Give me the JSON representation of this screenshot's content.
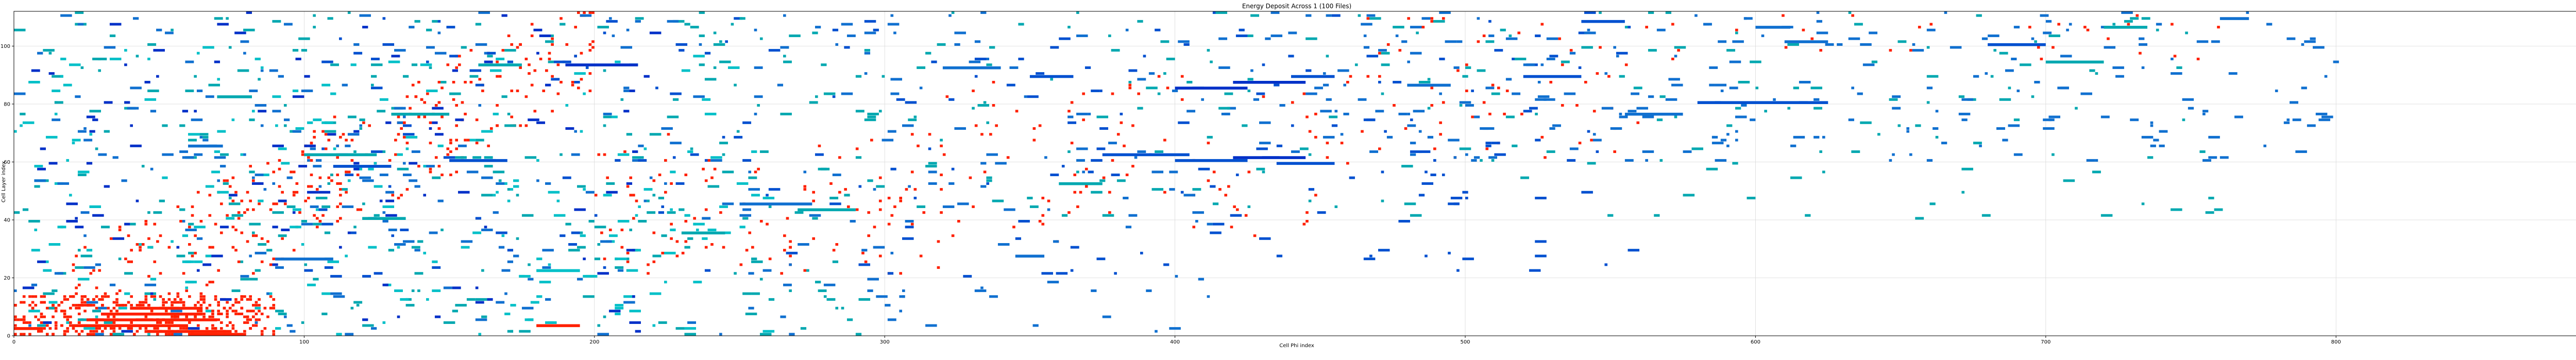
{
  "chart_data": {
    "type": "heatmap",
    "title": "Energy Deposit Across 1  (100 Files)",
    "xlabel": "Cell Phi index",
    "ylabel": "Cell Layer index",
    "xlim": [
      0,
      888
    ],
    "ylim": [
      0,
      112
    ],
    "xticks": [
      0,
      100,
      200,
      300,
      400,
      500,
      600,
      700,
      800
    ],
    "yticks": [
      0,
      20,
      40,
      60,
      80,
      100
    ],
    "grid": true,
    "colors": {
      "hot": "#ff2000",
      "blue": "#0050d0",
      "deep_blue": "#0030c8",
      "teal": "#00a8b0",
      "cyan": "#00c0c8",
      "mid_blue": "#1070d0"
    },
    "segments": [
      {
        "x": 0,
        "y": 2,
        "w": 10,
        "c": "hot"
      },
      {
        "x": 20,
        "y": 3,
        "w": 40,
        "c": "hot"
      },
      {
        "x": 25,
        "y": 5,
        "w": 45,
        "c": "hot"
      },
      {
        "x": 30,
        "y": 7,
        "w": 35,
        "c": "hot"
      },
      {
        "x": 40,
        "y": 9,
        "w": 25,
        "c": "hot"
      },
      {
        "x": 45,
        "y": 1,
        "w": 30,
        "c": "hot"
      },
      {
        "x": 60,
        "y": 0,
        "w": 20,
        "c": "hot"
      },
      {
        "x": 180,
        "y": 3,
        "w": 15,
        "c": "hot"
      },
      {
        "x": 100,
        "y": 62,
        "w": 25,
        "c": "teal"
      },
      {
        "x": 110,
        "y": 58,
        "w": 20,
        "c": "blue"
      },
      {
        "x": 150,
        "y": 60,
        "w": 20,
        "c": "blue"
      },
      {
        "x": 190,
        "y": 93,
        "w": 25,
        "c": "deep_blue"
      },
      {
        "x": 160,
        "y": 93,
        "w": 15,
        "c": "teal"
      },
      {
        "x": 130,
        "y": 76,
        "w": 20,
        "c": "teal"
      },
      {
        "x": 70,
        "y": 82,
        "w": 12,
        "c": "teal"
      },
      {
        "x": 90,
        "y": 26,
        "w": 20,
        "c": "mid_blue"
      },
      {
        "x": 250,
        "y": 45,
        "w": 25,
        "c": "mid_blue"
      },
      {
        "x": 270,
        "y": 43,
        "w": 20,
        "c": "teal"
      },
      {
        "x": 360,
        "y": 52,
        "w": 15,
        "c": "teal"
      },
      {
        "x": 345,
        "y": 27,
        "w": 10,
        "c": "mid_blue"
      },
      {
        "x": 375,
        "y": 62,
        "w": 30,
        "c": "blue"
      },
      {
        "x": 400,
        "y": 60,
        "w": 25,
        "c": "blue"
      },
      {
        "x": 420,
        "y": 61,
        "w": 25,
        "c": "deep_blue"
      },
      {
        "x": 435,
        "y": 59,
        "w": 20,
        "c": "blue"
      },
      {
        "x": 400,
        "y": 85,
        "w": 25,
        "c": "deep_blue"
      },
      {
        "x": 420,
        "y": 87,
        "w": 25,
        "c": "deep_blue"
      },
      {
        "x": 440,
        "y": 89,
        "w": 15,
        "c": "blue"
      },
      {
        "x": 350,
        "y": 89,
        "w": 15,
        "c": "blue"
      },
      {
        "x": 320,
        "y": 92,
        "w": 20,
        "c": "mid_blue"
      },
      {
        "x": 480,
        "y": 86,
        "w": 15,
        "c": "mid_blue"
      },
      {
        "x": 520,
        "y": 89,
        "w": 20,
        "c": "blue"
      },
      {
        "x": 555,
        "y": 76,
        "w": 20,
        "c": "mid_blue"
      },
      {
        "x": 580,
        "y": 80,
        "w": 45,
        "c": "blue"
      },
      {
        "x": 610,
        "y": 101,
        "w": 15,
        "c": "mid_blue"
      },
      {
        "x": 680,
        "y": 100,
        "w": 20,
        "c": "blue"
      },
      {
        "x": 700,
        "y": 94,
        "w": 20,
        "c": "teal"
      },
      {
        "x": 720,
        "y": 106,
        "w": 15,
        "c": "teal"
      },
      {
        "x": 540,
        "y": 108,
        "w": 15,
        "c": "blue"
      },
      {
        "x": 600,
        "y": 106,
        "w": 12,
        "c": "mid_blue"
      },
      {
        "x": 760,
        "y": 109,
        "w": 10,
        "c": "mid_blue"
      },
      {
        "x": 230,
        "y": 35,
        "w": 15,
        "c": "teal"
      },
      {
        "x": 180,
        "y": 22,
        "w": 15,
        "c": "cyan"
      },
      {
        "x": 120,
        "y": 40,
        "w": 15,
        "c": "teal"
      },
      {
        "x": 60,
        "y": 65,
        "w": 12,
        "c": "mid_blue"
      }
    ],
    "scatter_seed": 7,
    "scatter": [
      {
        "c": "hot",
        "n": 420,
        "xr": [
          0,
          90
        ],
        "yr": [
          0,
          14
        ]
      },
      {
        "c": "hot",
        "n": 360,
        "xr": [
          20,
          200
        ],
        "yr": [
          10,
          100
        ],
        "diag": true
      },
      {
        "c": "hot",
        "n": 120,
        "xr": [
          200,
          320
        ],
        "yr": [
          20,
          70
        ]
      },
      {
        "c": "hot",
        "n": 90,
        "xr": [
          320,
          460
        ],
        "yr": [
          30,
          90
        ]
      },
      {
        "c": "hot",
        "n": 60,
        "xr": [
          460,
          560
        ],
        "yr": [
          60,
          110
        ]
      },
      {
        "c": "hot",
        "n": 30,
        "xr": [
          560,
          760
        ],
        "yr": [
          95,
          112
        ]
      },
      {
        "c": "teal",
        "n": 320,
        "xr": [
          0,
          300
        ],
        "yr": [
          0,
          112
        ]
      },
      {
        "c": "cyan",
        "n": 220,
        "xr": [
          0,
          260
        ],
        "yr": [
          0,
          100
        ]
      },
      {
        "c": "mid_blue",
        "n": 320,
        "xr": [
          0,
          420
        ],
        "yr": [
          0,
          112
        ]
      },
      {
        "c": "blue",
        "n": 220,
        "xr": [
          100,
          560
        ],
        "yr": [
          20,
          112
        ]
      },
      {
        "c": "teal",
        "n": 200,
        "xr": [
          300,
          760
        ],
        "yr": [
          40,
          112
        ]
      },
      {
        "c": "mid_blue",
        "n": 260,
        "xr": [
          420,
          800
        ],
        "yr": [
          60,
          112
        ]
      },
      {
        "c": "deep_blue",
        "n": 120,
        "xr": [
          0,
          220
        ],
        "yr": [
          0,
          112
        ]
      }
    ]
  }
}
